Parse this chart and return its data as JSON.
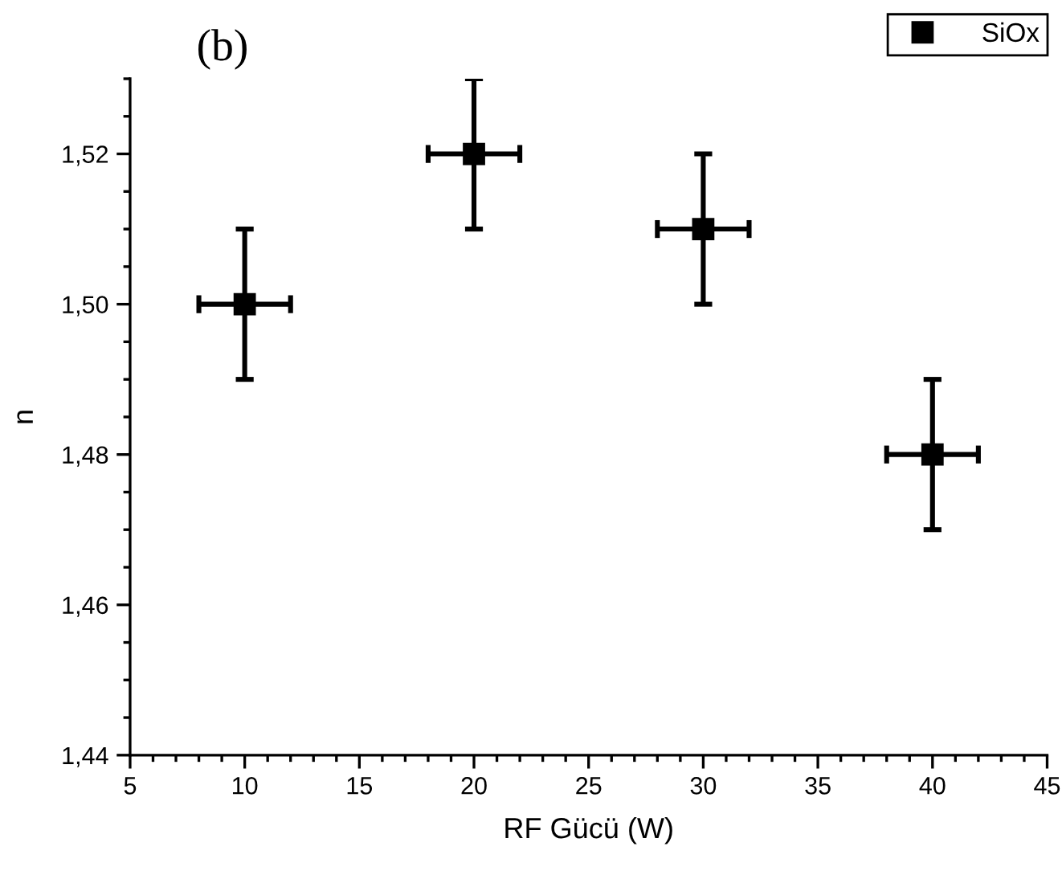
{
  "chart_data": {
    "type": "scatter",
    "xlabel": "RF Gücü (W)",
    "ylabel": "n",
    "annotations": [
      "(b)"
    ],
    "x": [
      10,
      20,
      30,
      40
    ],
    "series": [
      {
        "name": "SiOx",
        "color": "#000000",
        "values": [
          1.5,
          1.52,
          1.51,
          1.48
        ],
        "errors": [
          0.01,
          0.01,
          0.01,
          0.01
        ],
        "xerrors": [
          2,
          2,
          2,
          2
        ]
      }
    ],
    "xlim": [
      5,
      45
    ],
    "xticks": [
      5,
      10,
      15,
      20,
      25,
      30,
      35,
      40,
      45
    ],
    "ylim": [
      1.44,
      1.53
    ],
    "yticks": [
      {
        "value": 1.44,
        "label": "1,44"
      },
      {
        "value": 1.46,
        "label": "1,46"
      },
      {
        "value": 1.48,
        "label": "1,48"
      },
      {
        "value": 1.5,
        "label": "1,50"
      },
      {
        "value": 1.52,
        "label": "1,52"
      }
    ],
    "marker": "square",
    "grid": false,
    "legend": "top right"
  }
}
